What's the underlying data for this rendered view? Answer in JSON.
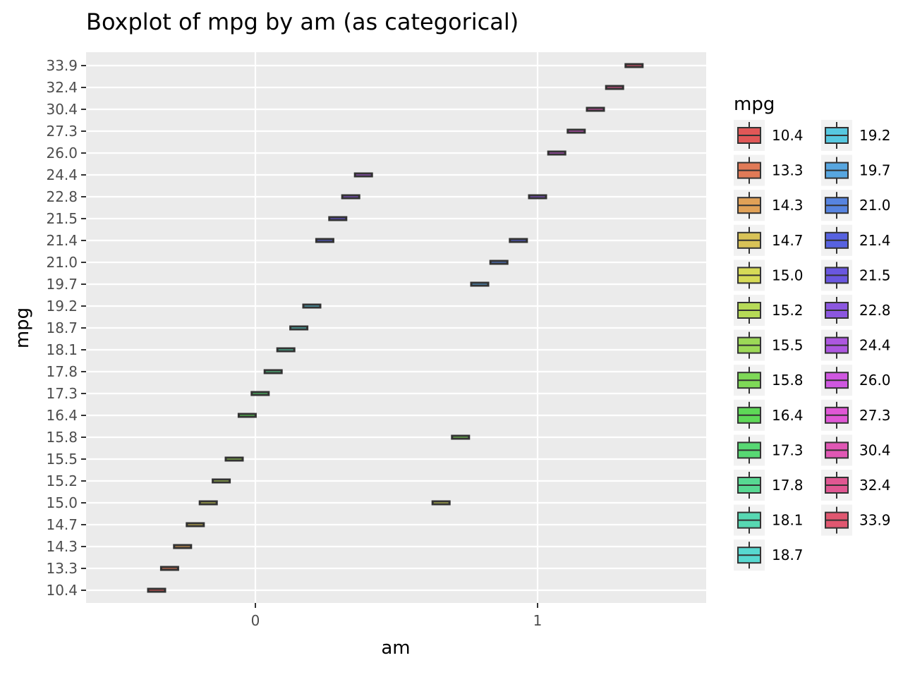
{
  "chart_data": {
    "type": "boxplot",
    "title": "Boxplot of mpg by am (as categorical)",
    "xlabel": "am",
    "ylabel": "mpg",
    "x_ticks": [
      "0",
      "1"
    ],
    "xlim": [
      -0.6,
      1.6
    ],
    "y_categories": [
      "10.4",
      "13.3",
      "14.3",
      "14.7",
      "15.0",
      "15.2",
      "15.5",
      "15.8",
      "16.4",
      "17.3",
      "17.8",
      "18.1",
      "18.7",
      "19.2",
      "19.7",
      "21.0",
      "21.4",
      "21.5",
      "22.8",
      "24.4",
      "26.0",
      "27.3",
      "30.4",
      "32.4",
      "33.9"
    ],
    "legend": {
      "title": "mpg",
      "placement": "right",
      "columns": 2
    },
    "grid": true,
    "panel_background": "#ebebeb",
    "series": [
      {
        "name": "10.4",
        "color": "#e05757",
        "boxes": [
          {
            "am": 0,
            "x": -0.35,
            "value": "10.4"
          }
        ]
      },
      {
        "name": "13.3",
        "color": "#e07a57",
        "boxes": [
          {
            "am": 0,
            "x": -0.304,
            "value": "13.3"
          }
        ]
      },
      {
        "name": "14.3",
        "color": "#e0a157",
        "boxes": [
          {
            "am": 0,
            "x": -0.258,
            "value": "14.3"
          }
        ]
      },
      {
        "name": "14.7",
        "color": "#d8c257",
        "boxes": [
          {
            "am": 0,
            "x": -0.213,
            "value": "14.7"
          }
        ]
      },
      {
        "name": "15.0",
        "color": "#d6da57",
        "boxes": [
          {
            "am": 0,
            "x": -0.167,
            "value": "15.0"
          },
          {
            "am": 1,
            "x": 0.658,
            "value": "15.0"
          }
        ]
      },
      {
        "name": "15.2",
        "color": "#b6da57",
        "boxes": [
          {
            "am": 0,
            "x": -0.121,
            "value": "15.2"
          }
        ]
      },
      {
        "name": "15.5",
        "color": "#9cd857",
        "boxes": [
          {
            "am": 0,
            "x": -0.075,
            "value": "15.5"
          }
        ]
      },
      {
        "name": "15.8",
        "color": "#7ed857",
        "boxes": [
          {
            "am": 1,
            "x": 0.727,
            "value": "15.8"
          }
        ]
      },
      {
        "name": "16.4",
        "color": "#5ed857",
        "boxes": [
          {
            "am": 0,
            "x": -0.029,
            "value": "16.4"
          }
        ]
      },
      {
        "name": "17.3",
        "color": "#57d873",
        "boxes": [
          {
            "am": 0,
            "x": 0.017,
            "value": "17.3"
          }
        ]
      },
      {
        "name": "17.8",
        "color": "#57d892",
        "boxes": [
          {
            "am": 0,
            "x": 0.063,
            "value": "17.8"
          }
        ]
      },
      {
        "name": "18.1",
        "color": "#57d8b2",
        "boxes": [
          {
            "am": 0,
            "x": 0.108,
            "value": "18.1"
          }
        ]
      },
      {
        "name": "18.7",
        "color": "#57d8d0",
        "boxes": [
          {
            "am": 0,
            "x": 0.154,
            "value": "18.7"
          }
        ]
      },
      {
        "name": "19.2",
        "color": "#57c8e0",
        "boxes": [
          {
            "am": 0,
            "x": 0.2,
            "value": "19.2"
          }
        ]
      },
      {
        "name": "19.7",
        "color": "#57a6e0",
        "boxes": [
          {
            "am": 1,
            "x": 0.795,
            "value": "19.7"
          }
        ]
      },
      {
        "name": "21.0",
        "color": "#5784e0",
        "boxes": [
          {
            "am": 1,
            "x": 0.863,
            "value": "21.0"
          }
        ]
      },
      {
        "name": "21.4",
        "color": "#5762e0",
        "boxes": [
          {
            "am": 0,
            "x": 0.246,
            "value": "21.4"
          },
          {
            "am": 1,
            "x": 0.932,
            "value": "21.4"
          }
        ]
      },
      {
        "name": "21.5",
        "color": "#6a57e0",
        "boxes": [
          {
            "am": 0,
            "x": 0.292,
            "value": "21.5"
          }
        ]
      },
      {
        "name": "22.8",
        "color": "#8c57e0",
        "boxes": [
          {
            "am": 0,
            "x": 0.338,
            "value": "22.8"
          },
          {
            "am": 1,
            "x": 1.0,
            "value": "22.8"
          }
        ]
      },
      {
        "name": "24.4",
        "color": "#ad57e0",
        "boxes": [
          {
            "am": 0,
            "x": 0.383,
            "value": "24.4"
          }
        ]
      },
      {
        "name": "26.0",
        "color": "#cf57e0",
        "boxes": [
          {
            "am": 1,
            "x": 1.068,
            "value": "26.0"
          }
        ]
      },
      {
        "name": "27.3",
        "color": "#e057d6",
        "boxes": [
          {
            "am": 1,
            "x": 1.137,
            "value": "27.3"
          }
        ]
      },
      {
        "name": "30.4",
        "color": "#e057b4",
        "boxes": [
          {
            "am": 1,
            "x": 1.205,
            "value": "30.4"
          }
        ]
      },
      {
        "name": "32.4",
        "color": "#e05792",
        "boxes": [
          {
            "am": 1,
            "x": 1.273,
            "value": "32.4"
          }
        ]
      },
      {
        "name": "33.9",
        "color": "#e05770",
        "boxes": [
          {
            "am": 1,
            "x": 1.342,
            "value": "33.9"
          }
        ]
      }
    ]
  }
}
